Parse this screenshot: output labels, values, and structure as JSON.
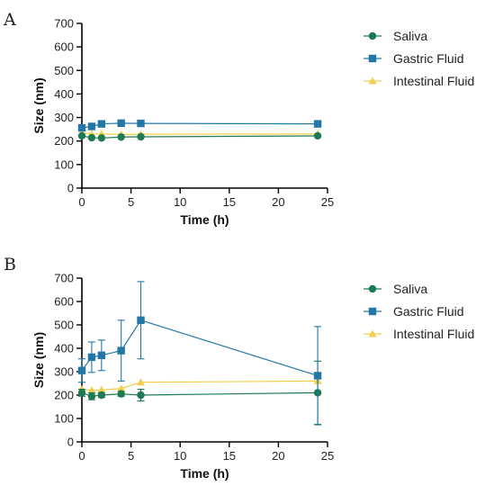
{
  "chart_data": [
    {
      "panel": "A",
      "type": "line",
      "xlabel": "Time (h)",
      "ylabel": "Size (nm)",
      "xlim": [
        0,
        25
      ],
      "ylim": [
        0,
        700
      ],
      "xticks": [
        0,
        5,
        10,
        15,
        20,
        25
      ],
      "yticks": [
        0,
        100,
        200,
        300,
        400,
        500,
        600,
        700
      ],
      "grid": false,
      "legend_position": "right",
      "x": [
        0,
        1,
        2,
        4,
        6,
        24
      ],
      "series": [
        {
          "name": "Saliva",
          "marker": "circle",
          "color": "#1e7a52",
          "values": [
            222,
            214,
            213,
            217,
            218,
            222
          ],
          "errors": [
            0,
            0,
            0,
            0,
            0,
            0
          ]
        },
        {
          "name": "Gastric Fluid",
          "marker": "square",
          "color": "#2277a6",
          "values": [
            256,
            262,
            273,
            276,
            275,
            273
          ],
          "errors": [
            0,
            0,
            0,
            0,
            0,
            0
          ]
        },
        {
          "name": "Intestinal Fluid",
          "marker": "triangle",
          "color": "#f1cf4a",
          "values": [
            234,
            230,
            230,
            228,
            229,
            230
          ],
          "errors": [
            0,
            0,
            0,
            0,
            0,
            0
          ]
        }
      ]
    },
    {
      "panel": "B",
      "type": "line",
      "xlabel": "Time (h)",
      "ylabel": "Size (nm)",
      "xlim": [
        0,
        25
      ],
      "ylim": [
        0,
        700
      ],
      "xticks": [
        0,
        5,
        10,
        15,
        20,
        25
      ],
      "yticks": [
        0,
        100,
        200,
        300,
        400,
        500,
        600,
        700
      ],
      "grid": false,
      "legend_position": "right",
      "x": [
        0,
        1,
        2,
        4,
        6,
        24
      ],
      "series": [
        {
          "name": "Saliva",
          "marker": "circle",
          "color": "#1e7a52",
          "values": [
            210,
            195,
            200,
            205,
            200,
            210
          ],
          "errors": [
            15,
            15,
            10,
            10,
            25,
            135
          ]
        },
        {
          "name": "Gastric Fluid",
          "marker": "square",
          "color": "#2277a6",
          "values": [
            305,
            362,
            370,
            390,
            520,
            283
          ],
          "errors": [
            50,
            65,
            65,
            130,
            165,
            210
          ]
        },
        {
          "name": "Intestinal Fluid",
          "marker": "triangle",
          "color": "#f1cf4a",
          "values": [
            225,
            220,
            222,
            228,
            255,
            260
          ],
          "errors": [
            0,
            0,
            0,
            0,
            0,
            0
          ]
        }
      ]
    }
  ]
}
